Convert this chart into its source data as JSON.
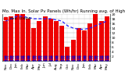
{
  "title": "Mo. Max In. Solar Pv Panels (Wh/hr) Running avg. of High : 19",
  "legend_label": "Red: 1000W",
  "months": [
    "Nov",
    "Dec",
    "Jan",
    "Feb",
    "Mar",
    "Apr",
    "May",
    "Jun",
    "Jul",
    "Aug",
    "Sep",
    "Oct",
    "Nov",
    "Dec",
    "Jan",
    "Feb",
    "Mar",
    "Apr",
    "May"
  ],
  "bar_values": [
    17,
    19,
    20,
    20,
    18,
    14,
    17,
    19,
    18,
    17,
    15,
    6,
    9,
    14,
    13,
    16,
    20,
    17,
    19
  ],
  "blue_dot_values": [
    3,
    3,
    3,
    3,
    3,
    3,
    3,
    3,
    3,
    3,
    3,
    3,
    3,
    3,
    3,
    3,
    3,
    3,
    3
  ],
  "running_avg": [
    17,
    18,
    19,
    19,
    18.5,
    18,
    18,
    18,
    18,
    17.5,
    17,
    15,
    14,
    13.5,
    13.5,
    14,
    15,
    16,
    17
  ],
  "ylim": [
    0,
    20
  ],
  "ytick_vals": [
    2,
    4,
    6,
    8,
    10,
    12,
    14,
    16,
    18,
    20
  ],
  "ytick_labels": [
    "2",
    "4",
    "6",
    "8",
    "10",
    "12",
    "14",
    "16",
    "18",
    "20"
  ],
  "bg_color": "#ffffff",
  "bar_color": "#ee0000",
  "blue_color": "#0000dd",
  "avg_line_color": "#2222ff",
  "grid_color": "#aaaaaa",
  "title_fontsize": 4.0,
  "tick_fontsize": 3.2,
  "legend_fontsize": 3.2
}
